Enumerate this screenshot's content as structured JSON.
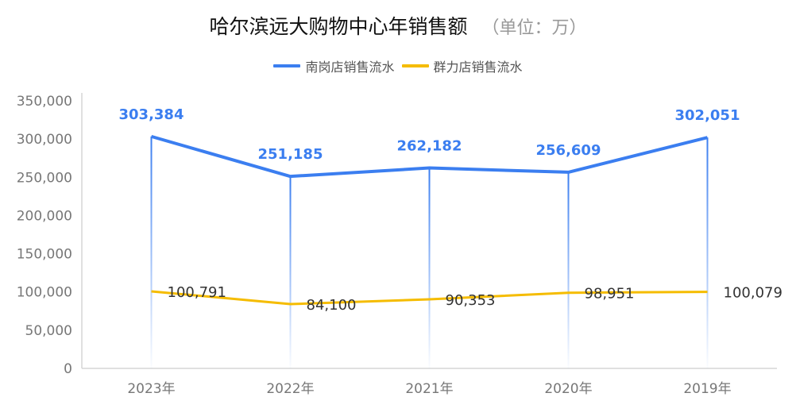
{
  "header": {
    "title": "哈尔滨远大购物中心年销售额",
    "unit": "（单位：万）"
  },
  "legend": [
    {
      "label": "南岗店销售流水",
      "color": "#3b7ef0"
    },
    {
      "label": "群力店销售流水",
      "color": "#f5bc00"
    }
  ],
  "y_axis": {
    "ticks": [
      "0",
      "50,000",
      "100,000",
      "150,000",
      "200,000",
      "250,000",
      "300,000",
      "350,000"
    ]
  },
  "x_axis": {
    "ticks": [
      "2023年",
      "2022年",
      "2021年",
      "2020年",
      "2019年"
    ]
  },
  "data_labels": {
    "nangang": [
      "303,384",
      "251,185",
      "262,182",
      "256,609",
      "302,051"
    ],
    "qunli": [
      "100,791",
      "84,100",
      "90,353",
      "98,951",
      "100,079"
    ]
  },
  "chart_data": {
    "type": "line",
    "title": "哈尔滨远大购物中心年销售额 （单位：万）",
    "xlabel": "",
    "ylabel": "",
    "categories": [
      "2023年",
      "2022年",
      "2021年",
      "2020年",
      "2019年"
    ],
    "series": [
      {
        "name": "南岗店销售流水",
        "color": "#3b7ef0",
        "values": [
          303384,
          251185,
          262182,
          256609,
          302051
        ]
      },
      {
        "name": "群力店销售流水",
        "color": "#f5bc00",
        "values": [
          100791,
          84100,
          90353,
          98951,
          100079
        ]
      }
    ],
    "ylim": [
      0,
      350000
    ],
    "yticks": [
      0,
      50000,
      100000,
      150000,
      200000,
      250000,
      300000,
      350000
    ],
    "grid": false,
    "legend_position": "top"
  }
}
